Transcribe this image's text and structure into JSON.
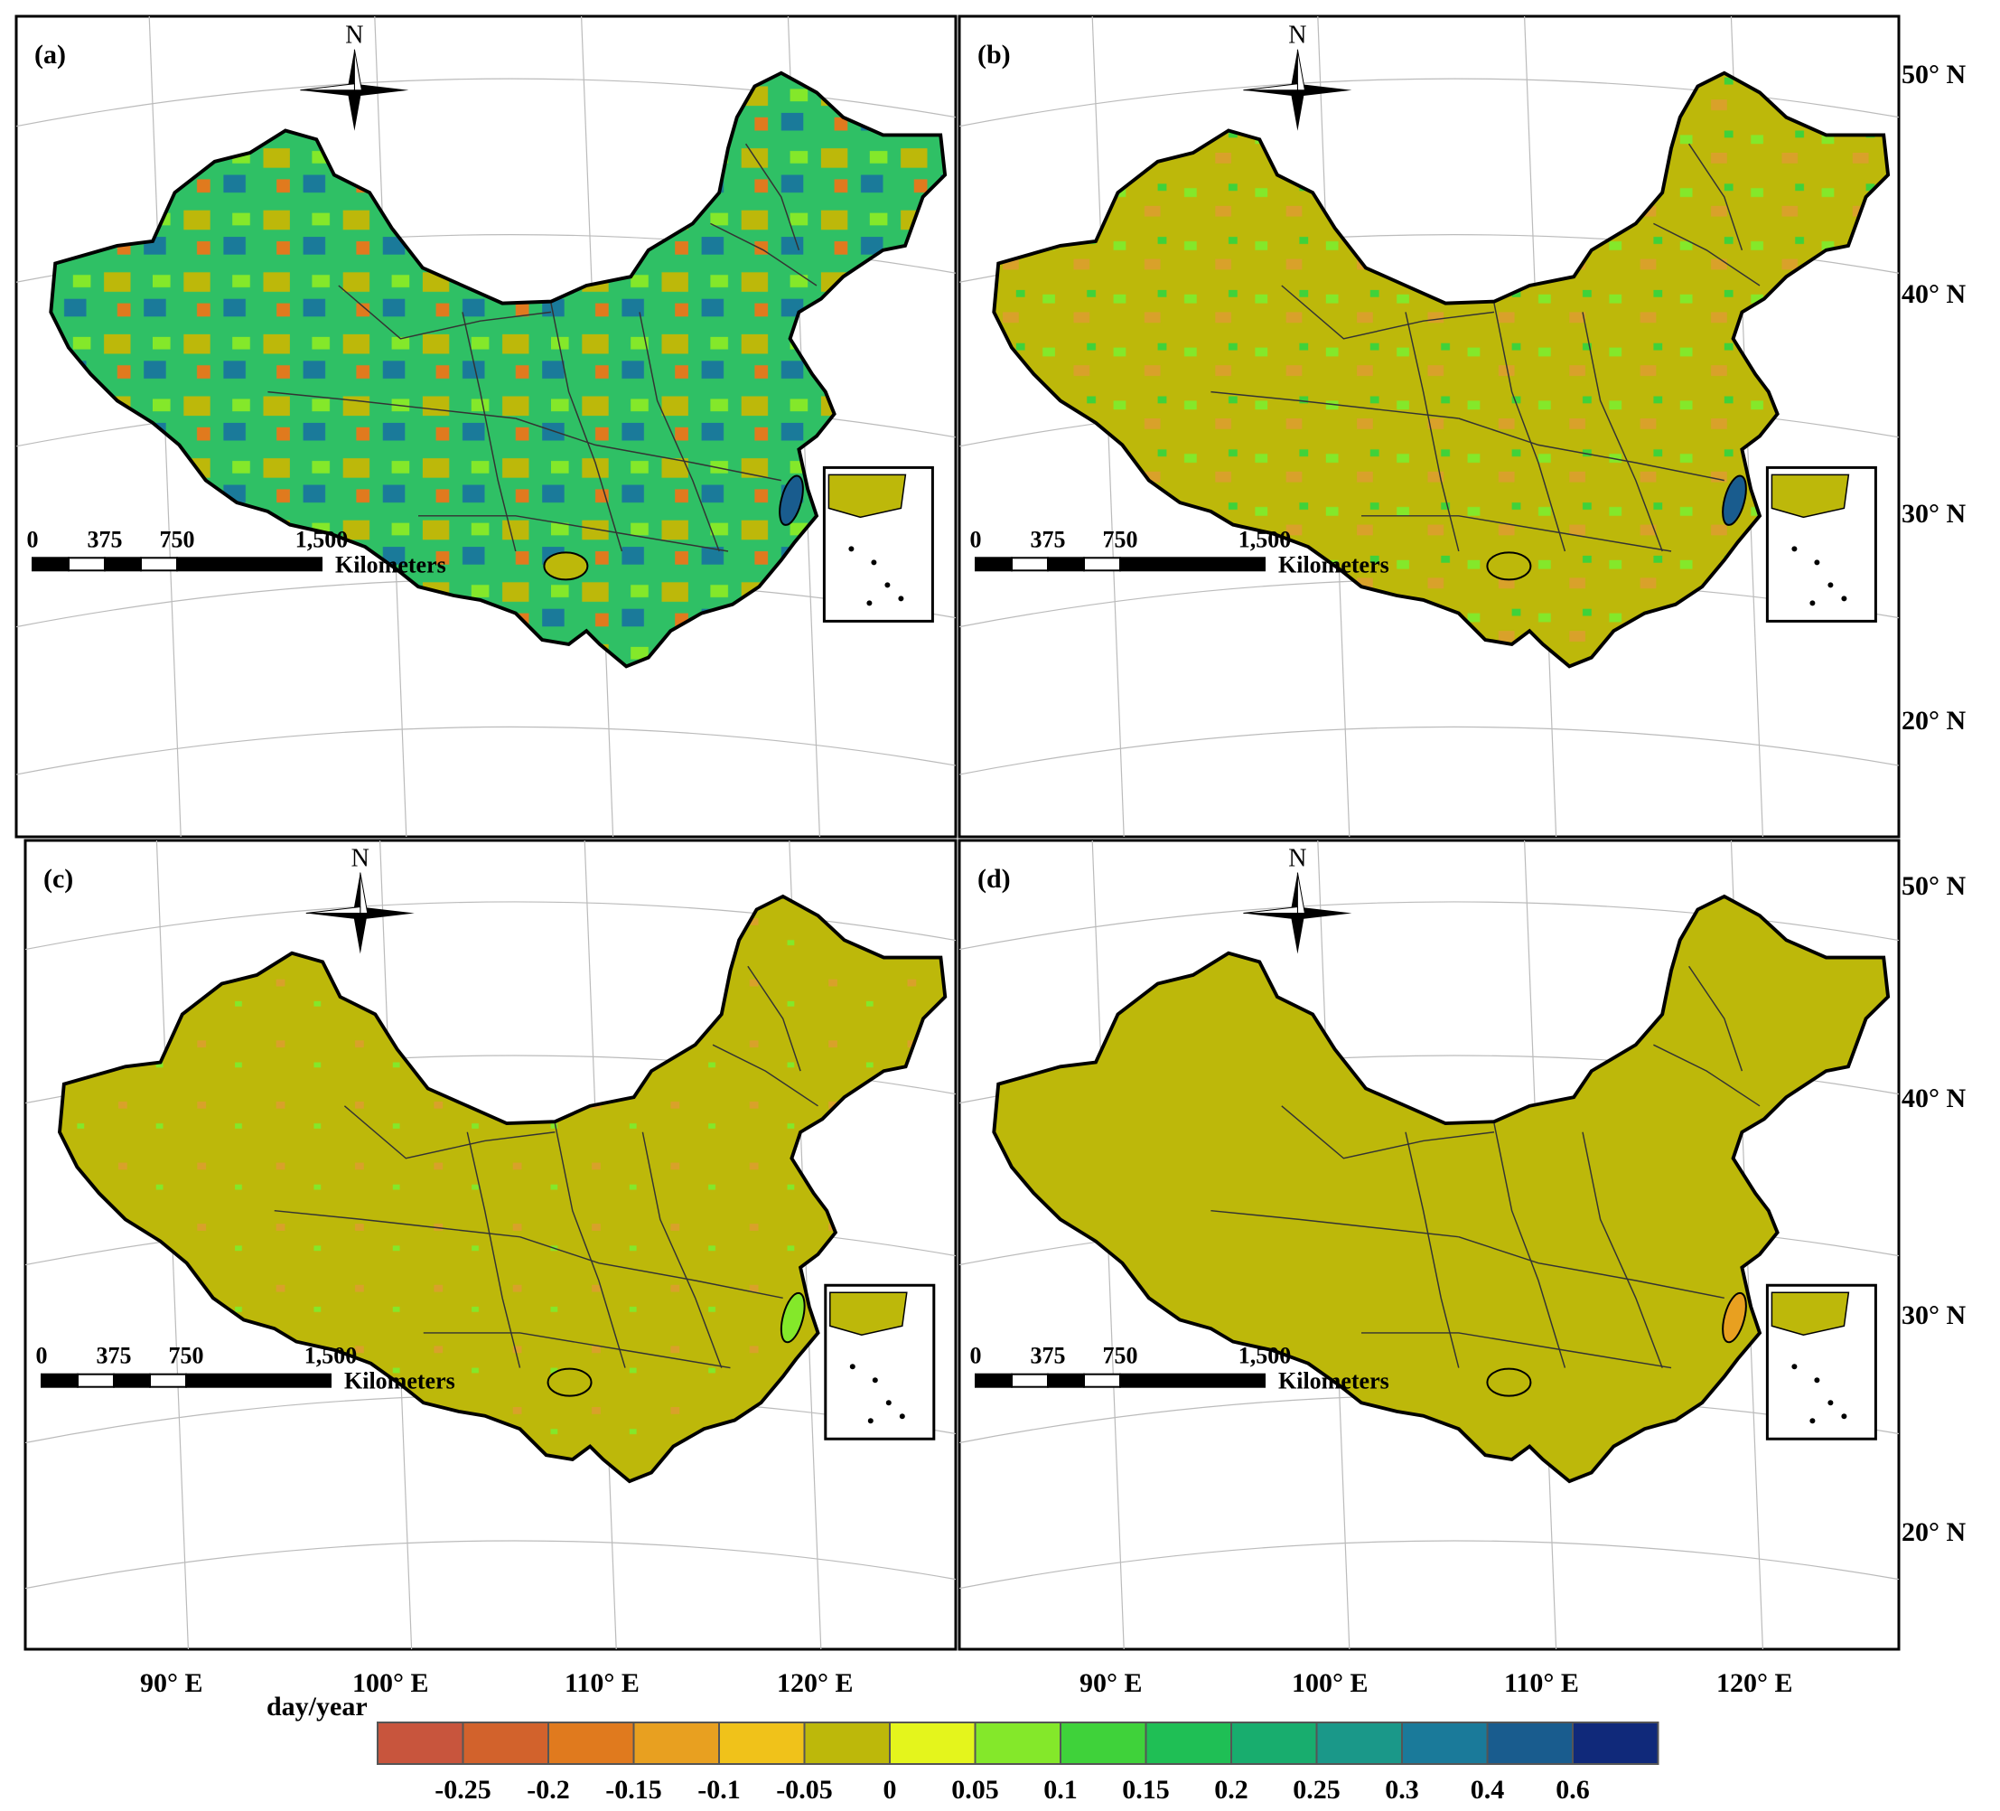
{
  "panels": [
    {
      "id": "a",
      "label": "(a)"
    },
    {
      "id": "b",
      "label": "(b)"
    },
    {
      "id": "c",
      "label": "(c)"
    },
    {
      "id": "d",
      "label": "(d)"
    }
  ],
  "north_label": "N",
  "scale_bar": {
    "ticks": [
      "0",
      "375",
      "750",
      "1,500"
    ],
    "unit": "Kilometers"
  },
  "latitude_labels": [
    "50° N",
    "40° N",
    "30° N",
    "20° N"
  ],
  "longitude_labels": [
    "90° E",
    "100° E",
    "110° E",
    "120° E"
  ],
  "legend": {
    "title": "day/year",
    "colors": [
      "#c8553d",
      "#d2622c",
      "#e07a1e",
      "#e8a020",
      "#f0c21a",
      "#bdb80a",
      "#e4f51c",
      "#84e82a",
      "#3fd23a",
      "#1fbf55",
      "#18ad6e",
      "#1a9889",
      "#1a7a9a",
      "#195c8e",
      "#10297a"
    ],
    "labels": [
      "-0.25",
      "-0.2",
      "-0.15",
      "-0.1",
      "-0.05",
      "0",
      "0.05",
      "0.1",
      "0.15",
      "0.2",
      "0.25",
      "0.3",
      "0.4",
      "0.6"
    ]
  },
  "colors": {
    "base": "#bdb80a",
    "border": "#000000"
  }
}
